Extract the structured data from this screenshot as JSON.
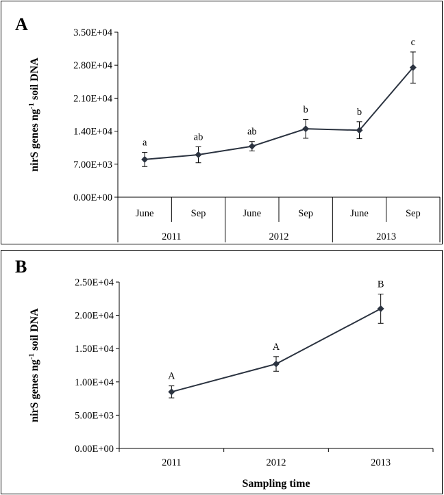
{
  "chart_data": [
    {
      "type": "line",
      "panel_label": "A",
      "ylabel": "nirS genes ng-1 soil DNA",
      "xlabel": "",
      "ylim": [
        0,
        35000
      ],
      "yticks": [
        "0.00E+00",
        "7.00E+03",
        "1.40E+04",
        "2.10E+04",
        "2.80E+04",
        "3.50E+04"
      ],
      "categories": [
        "June",
        "Sep",
        "June",
        "Sep",
        "June",
        "Sep"
      ],
      "groups": [
        {
          "label": "2011",
          "span": 2
        },
        {
          "label": "2012",
          "span": 2
        },
        {
          "label": "2013",
          "span": 2
        }
      ],
      "values": [
        8000,
        9000,
        10800,
        14500,
        14200,
        27500
      ],
      "errors": [
        1500,
        1700,
        1000,
        2000,
        1800,
        3300
      ],
      "annotations": [
        "a",
        "ab",
        "ab",
        "b",
        "b",
        "c"
      ],
      "grid": false,
      "colors": {
        "line": "#2b3340"
      }
    },
    {
      "type": "line",
      "panel_label": "B",
      "ylabel": "nirS genes ng-1 soil DNA",
      "xlabel": "Sampling time",
      "ylim": [
        0,
        25000
      ],
      "yticks": [
        "0.00E+00",
        "5.00E+03",
        "1.00E+04",
        "1.50E+04",
        "2.00E+04",
        "2.50E+04"
      ],
      "categories": [
        "2011",
        "2012",
        "2013"
      ],
      "values": [
        8500,
        12700,
        21000
      ],
      "errors": [
        900,
        1100,
        2200
      ],
      "annotations": [
        "A",
        "A",
        "B"
      ],
      "grid": false,
      "colors": {
        "line": "#2b3340"
      }
    }
  ]
}
